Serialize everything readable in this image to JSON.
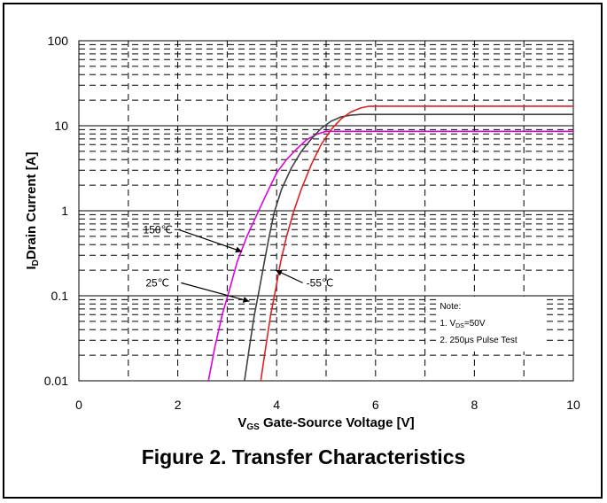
{
  "figure_caption": "Figure 2. Transfer Characteristics",
  "chart_data": {
    "type": "line",
    "title": "",
    "xlabel": "V",
    "xlabel_sub": "GS",
    "xlabel_rest": " Gate-Source Voltage [V]",
    "ylabel": "I",
    "ylabel_sub": "D",
    "ylabel_rest": "Drain Current [A]",
    "xlim": [
      0,
      10
    ],
    "ylim": [
      0.01,
      100
    ],
    "y_scale": "log",
    "grid": true,
    "x_ticks": [
      0,
      2,
      4,
      6,
      8,
      10
    ],
    "x_tick_labels": [
      "0",
      "2",
      "4",
      "6",
      "8",
      "10"
    ],
    "y_ticks": [
      0.01,
      0.1,
      1,
      10,
      100
    ],
    "y_tick_labels": [
      "0.01",
      "0.1",
      "1",
      "10",
      "100"
    ],
    "series": [
      {
        "name": "150℃",
        "color": "#e000e0",
        "x": [
          2.62,
          2.75,
          2.9,
          3.05,
          3.2,
          3.4,
          3.6,
          3.8,
          4.0,
          4.2,
          4.4,
          4.6,
          4.8,
          5.0,
          5.5,
          6.0,
          7.0,
          8.0,
          10.0
        ],
        "y": [
          0.01,
          0.025,
          0.06,
          0.12,
          0.25,
          0.5,
          0.9,
          1.6,
          2.8,
          4.0,
          5.3,
          6.8,
          7.9,
          8.6,
          8.6,
          8.6,
          8.6,
          8.6,
          8.6
        ]
      },
      {
        "name": "25℃",
        "color": "#404040",
        "x": [
          3.35,
          3.45,
          3.55,
          3.65,
          3.75,
          3.85,
          3.95,
          4.1,
          4.3,
          4.5,
          4.7,
          4.9,
          5.1,
          5.3,
          5.5,
          5.7,
          6.0,
          7.0,
          8.0,
          10.0
        ],
        "y": [
          0.01,
          0.025,
          0.06,
          0.12,
          0.25,
          0.5,
          0.95,
          1.8,
          3.2,
          5.0,
          7.0,
          9.3,
          11.3,
          12.7,
          13.3,
          13.6,
          13.6,
          13.6,
          13.6,
          13.6
        ]
      },
      {
        "name": "-55℃",
        "color": "#e02020",
        "x": [
          3.68,
          3.78,
          3.88,
          3.98,
          4.08,
          4.2,
          4.35,
          4.5,
          4.7,
          4.9,
          5.1,
          5.3,
          5.5,
          5.7,
          5.85,
          6.0,
          7.0,
          8.0,
          10.0
        ],
        "y": [
          0.01,
          0.025,
          0.06,
          0.12,
          0.25,
          0.5,
          1.0,
          1.8,
          3.5,
          6.0,
          9.0,
          12.0,
          14.5,
          16.2,
          16.9,
          17.0,
          17.0,
          17.0,
          17.0
        ]
      }
    ],
    "annotations": [
      {
        "text": "150℃",
        "label_x": 1.3,
        "label_y": 0.6,
        "arrow_to": [
          3.3,
          0.33
        ]
      },
      {
        "text": "25℃",
        "label_x": 1.35,
        "label_y": 0.142,
        "arrow_to": [
          3.45,
          0.086
        ]
      },
      {
        "text": "-55℃",
        "label_x": 4.6,
        "label_y": 0.142,
        "arrow_to": [
          3.98,
          0.2
        ]
      }
    ],
    "note": {
      "lines": [
        {
          "text": "Note:"
        },
        {
          "text": "1. V",
          "sub": "DS",
          "rest": "=50V"
        },
        {
          "text": "2. 250μs Pulse Test"
        }
      ]
    }
  }
}
